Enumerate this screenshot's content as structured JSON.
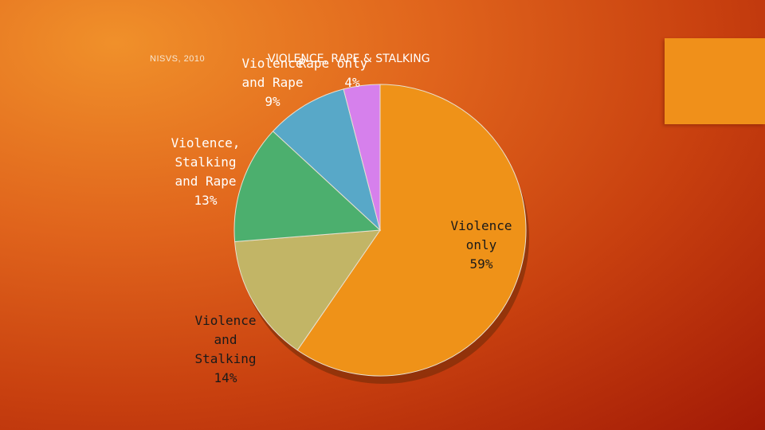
{
  "source_note": "NISVS, 2010",
  "chart_data": {
    "type": "pie",
    "title": "VIOLENCE, RAPE & STALKING",
    "slices": [
      {
        "label_lines": [
          "Violence",
          "only"
        ],
        "value": 59,
        "display": "59%",
        "color": "#ef9218"
      },
      {
        "label_lines": [
          "Violence",
          "and",
          "Stalking"
        ],
        "value": 14,
        "display": "14%",
        "color": "#c2b566"
      },
      {
        "label_lines": [
          "Violence,",
          "Stalking",
          "and Rape"
        ],
        "value": 13,
        "display": "13%",
        "color": "#4caf6e"
      },
      {
        "label_lines": [
          "Violence",
          "and Rape"
        ],
        "value": 9,
        "display": "9%",
        "color": "#58a8c8"
      },
      {
        "label_lines": [
          "Rape only"
        ],
        "value": 4,
        "display": "4%",
        "color": "#d680ec"
      }
    ]
  }
}
